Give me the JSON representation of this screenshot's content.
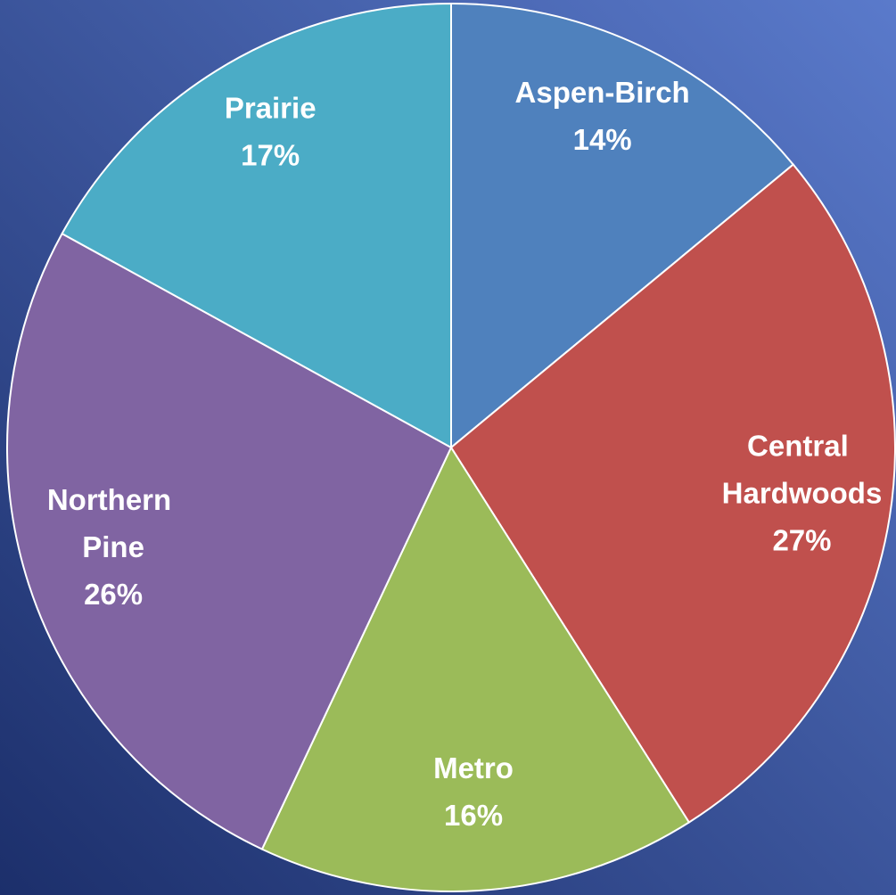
{
  "chart_data": {
    "type": "pie",
    "categories": [
      "Aspen-Birch",
      "Central Hardwoods",
      "Metro",
      "Northern Pine",
      "Prairie"
    ],
    "values": [
      14,
      27,
      16,
      26,
      17
    ],
    "value_labels": [
      "14%",
      "27%",
      "16%",
      "26%",
      "17%"
    ],
    "colors": [
      "#4f81bd",
      "#c0504d",
      "#9bbb59",
      "#8064a2",
      "#4bacc6"
    ]
  }
}
